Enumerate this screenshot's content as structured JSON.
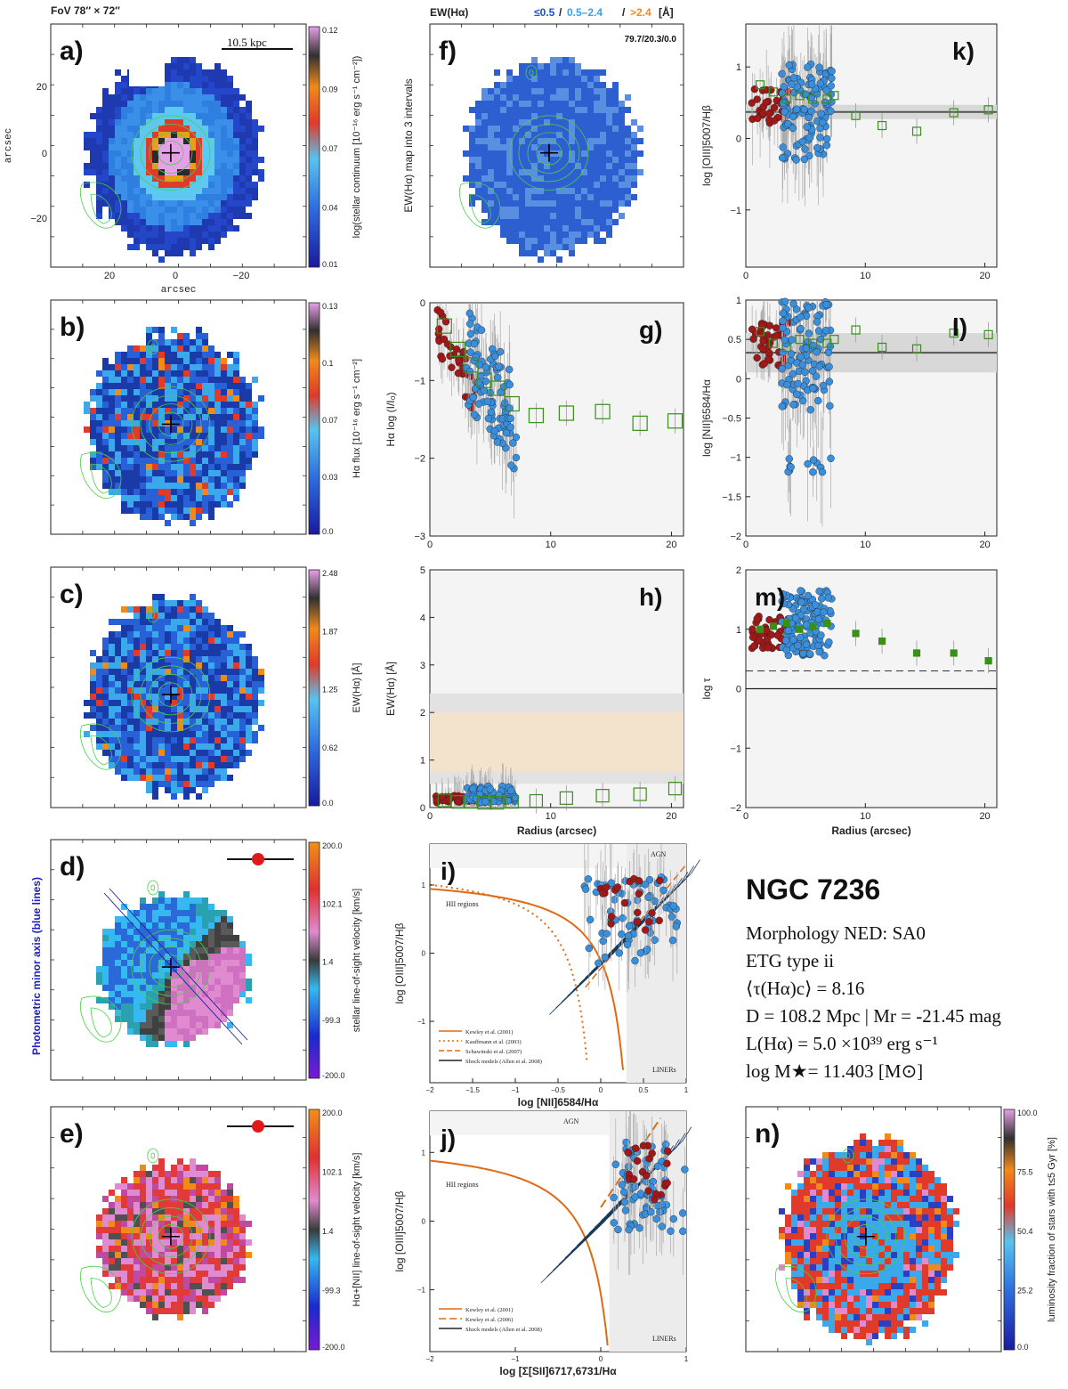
{
  "object": {
    "name": "NGC 7236",
    "morphology": "Morphology NED: SA0",
    "etg_type": "ETG type ii",
    "tau": "⟨τ(Hα)c⟩ = 8.16",
    "distance": "D = 108.2 Mpc | Mr = -21.45 mag",
    "lum": "L(Hα) = 5.0 ×10³⁹ erg s⁻¹",
    "mass": "log M★= 11.403 [M⊙]"
  },
  "header": {
    "fov": "FoV 78″ × 72″",
    "ew_title": "EW(Hα)",
    "ew_legend": [
      "≤0.5",
      "0.5–2.4",
      ">2.4",
      "[Å]"
    ],
    "ew_fractions": "79.7/20.3/0.0",
    "scale": "10.5  kpc",
    "minor_axis": "Photometric minor axis (blue lines)"
  },
  "colors": {
    "low": "#1f4fd8",
    "mid": "#3aa0e8",
    "high": "#f08a1a",
    "red_pt": "#a01818",
    "blue_pt": "#3a8fdc",
    "green": "#3a8f1a",
    "orange_line": "#e06a14"
  },
  "maps": [
    {
      "id": "a",
      "label": "a)",
      "cbar_label": "log(stellar continuum [10⁻¹⁶ erg s⁻¹ cm⁻²])",
      "ticks": [
        "0.12",
        "0.09",
        "0.07",
        "0.04",
        "0.01"
      ],
      "xticks": [
        "20",
        "0",
        "−20"
      ],
      "yticks": [
        "20",
        "0",
        "−20"
      ],
      "xlabel": "arcsec",
      "ylabel": "arcsec"
    },
    {
      "id": "b",
      "label": "b)",
      "cbar_label": "Hα flux [10⁻¹⁶ erg s⁻¹ cm⁻²]",
      "ticks": [
        "0.13",
        "0.1",
        "0.07",
        "0.03",
        "0.0"
      ]
    },
    {
      "id": "c",
      "label": "c)",
      "cbar_label": "EW(Hα) [Å]",
      "ticks": [
        "2.48",
        "1.87",
        "1.25",
        "0.62",
        "0.0"
      ]
    },
    {
      "id": "d",
      "label": "d)",
      "cbar_label": "stellar line-of-sight velocity [km/s]",
      "ticks": [
        "200.0",
        "102.1",
        "1.4",
        "-99.3",
        "-200.0"
      ]
    },
    {
      "id": "e",
      "label": "e)",
      "cbar_label": "Hα+[NII] line-of-sight velocity [km/s]",
      "ticks": [
        "200.0",
        "102.1",
        "1.4",
        "-99.3",
        "-200.0"
      ]
    },
    {
      "id": "f",
      "label": "f)",
      "ylabel": "EW(Hα) map into 3 intervals"
    },
    {
      "id": "n",
      "label": "n)",
      "cbar_label": "luminosity fraction of stars with t≤5 Gyr [%]",
      "ticks": [
        "100.0",
        "75.5",
        "50.4",
        "25.2",
        "0.0"
      ]
    }
  ],
  "chart_data": [
    {
      "id": "k",
      "label": "k)",
      "type": "scatter",
      "ylabel": "log [OIII]5007/Hβ",
      "xlabel": "",
      "xlim": [
        0,
        21
      ],
      "ylim": [
        -1.8,
        1.6
      ],
      "xticks": [
        "0",
        "10",
        "20"
      ],
      "yticks": [
        "−1",
        "0",
        "1"
      ],
      "median": 0.37,
      "band": [
        0.27,
        0.47
      ],
      "binned": {
        "x": [
          1.2,
          2.3,
          3.4,
          4.5,
          5.6,
          6.8,
          7.4,
          9.2,
          11.4,
          14.3,
          17.4,
          20.3
        ],
        "y": [
          0.75,
          0.65,
          0.55,
          0.6,
          0.55,
          0.55,
          0.6,
          0.32,
          0.18,
          0.1,
          0.36,
          0.4
        ]
      }
    },
    {
      "id": "g",
      "label": "g)",
      "type": "scatter",
      "ylabel": "Hα log (I/I₀)",
      "xlabel": "",
      "xlim": [
        0,
        21
      ],
      "ylim": [
        -3,
        0
      ],
      "xticks": [
        "0",
        "10",
        "20"
      ],
      "yticks": [
        "0",
        "−1",
        "−2",
        "−3"
      ],
      "binned": {
        "x": [
          1.2,
          2.3,
          3.4,
          4.5,
          5.6,
          6.8,
          8.8,
          11.3,
          14.3,
          17.4,
          20.3
        ],
        "y": [
          -0.3,
          -0.6,
          -0.8,
          -1.0,
          -1.1,
          -1.3,
          -1.45,
          -1.42,
          -1.4,
          -1.55,
          -1.52
        ]
      }
    },
    {
      "id": "l",
      "label": "l)",
      "type": "scatter",
      "ylabel": "log [NII]6584/Hα",
      "xlabel": "",
      "xlim": [
        0,
        21
      ],
      "ylim": [
        -2,
        1
      ],
      "xticks": [
        "0",
        "10",
        "20"
      ],
      "yticks": [
        "1",
        "0.5",
        "0",
        "−0.5",
        "−1",
        "−1.5",
        "−2"
      ],
      "median": 0.33,
      "band": [
        0.08,
        0.58
      ],
      "binned": {
        "x": [
          1.2,
          2.3,
          3.4,
          4.5,
          5.6,
          6.8,
          7.4,
          9.2,
          11.4,
          14.3,
          17.4,
          20.3
        ],
        "y": [
          0.6,
          0.45,
          0.4,
          0.5,
          0.45,
          0.45,
          0.5,
          0.62,
          0.4,
          0.38,
          0.58,
          0.56
        ]
      }
    },
    {
      "id": "h",
      "label": "h)",
      "type": "scatter",
      "ylabel": "EW(Hα) [Å]",
      "xlabel": "Radius (arcsec)",
      "xlim": [
        0,
        21
      ],
      "ylim": [
        0,
        5
      ],
      "xticks": [
        "0",
        "10",
        "20"
      ],
      "yticks": [
        "0",
        "1",
        "2",
        "3",
        "4",
        "5"
      ],
      "grey_band": [
        0.5,
        2.4
      ],
      "tan_band": [
        0.75,
        2.0
      ],
      "binned": {
        "x": [
          1.2,
          2.3,
          3.4,
          4.5,
          5.6,
          6.8,
          8.8,
          11.3,
          14.3,
          17.4,
          20.3
        ],
        "y": [
          0.15,
          0.12,
          0.12,
          0.1,
          0.1,
          0.12,
          0.14,
          0.2,
          0.25,
          0.28,
          0.4
        ]
      }
    },
    {
      "id": "m",
      "label": "m)",
      "type": "scatter",
      "ylabel": "log τ",
      "xlabel": "Radius (arcsec)",
      "xlim": [
        0,
        21
      ],
      "ylim": [
        -2,
        2
      ],
      "xticks": [
        "0",
        "10",
        "20"
      ],
      "yticks": [
        "2",
        "1",
        "0",
        "−1",
        "−2"
      ],
      "dashed": 0.3,
      "solid": 0,
      "binned": {
        "x": [
          1.2,
          2.3,
          3.4,
          4.5,
          5.6,
          6.8,
          9.2,
          11.4,
          14.3,
          17.4,
          20.3
        ],
        "y": [
          1.0,
          1.05,
          1.1,
          1.0,
          1.05,
          1.1,
          0.93,
          0.8,
          0.6,
          0.6,
          0.47
        ]
      }
    },
    {
      "id": "i",
      "label": "i)",
      "type": "scatter",
      "xlabel": "log [NII]6584/Hα",
      "ylabel": "log [OIII]5007/Hβ",
      "xlim": [
        -2,
        1
      ],
      "ylim": [
        -1.9,
        1.6
      ],
      "xticks": [
        "−2",
        "−1.5",
        "−1",
        "−0.5",
        "0",
        "0.5",
        "1"
      ],
      "yticks": [
        "1",
        "0",
        "−1"
      ],
      "region_labels": [
        "AGN",
        "HII regions",
        "LINERs"
      ],
      "legend": [
        "Kewley et al. (2001)",
        "Kauffmann et al. (2003)",
        "Schawinski et al. (2007)",
        "Shock models (Allen et al. 2008)"
      ]
    },
    {
      "id": "j",
      "label": "j)",
      "type": "scatter",
      "xlabel": "log [Σ[SII]6717,6731/Hα",
      "ylabel": "log [OIII]5007/Hβ",
      "xlim": [
        -2,
        1
      ],
      "ylim": [
        -1.9,
        1.6
      ],
      "xticks": [
        "−2",
        "−1",
        "0",
        "1"
      ],
      "yticks": [
        "1",
        "0",
        "−1"
      ],
      "region_labels": [
        "AGN",
        "HII regions",
        "LINERs"
      ],
      "legend": [
        "Kewley et al. (2001)",
        "Kewley et al. (2006)",
        "Shock models (Allen et al. 2008)"
      ]
    }
  ]
}
